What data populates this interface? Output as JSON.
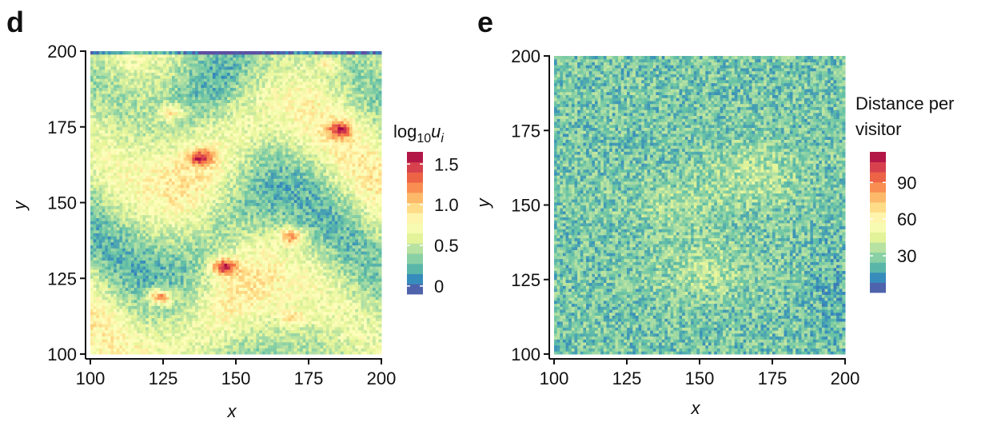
{
  "chart_data": [
    {
      "type": "heatmap",
      "panel_label": "d",
      "xlabel": "x",
      "ylabel": "y",
      "xlim": [
        100,
        200
      ],
      "ylim": [
        100,
        200
      ],
      "x_ticks": [
        100,
        125,
        150,
        175,
        200
      ],
      "y_ticks": [
        100,
        125,
        150,
        175,
        200
      ],
      "colorbar": {
        "title_base": "log",
        "title_sub": "10",
        "title_var": "u",
        "title_var_sub": "i",
        "range": [
          -0.1,
          1.65
        ],
        "ticks": [
          0,
          0.5,
          1.0,
          1.5
        ],
        "tick_labels": [
          "0",
          "0.5",
          "1.0",
          "1.5"
        ]
      },
      "hotspots": [
        {
          "x": 124,
          "y": 119,
          "value": 1.5
        },
        {
          "x": 146,
          "y": 129,
          "value": 1.55
        },
        {
          "x": 138,
          "y": 165,
          "value": 1.35
        },
        {
          "x": 169,
          "y": 139,
          "value": 1.3
        },
        {
          "x": 186,
          "y": 174,
          "value": 1.3
        },
        {
          "x": 128,
          "y": 180,
          "value": 1.1
        },
        {
          "x": 170,
          "y": 112,
          "value": 1.0
        },
        {
          "x": 182,
          "y": 196,
          "value": 1.0
        }
      ]
    },
    {
      "type": "heatmap",
      "panel_label": "e",
      "xlabel": "x",
      "ylabel": "y",
      "xlim": [
        100,
        200
      ],
      "ylim": [
        100,
        200
      ],
      "x_ticks": [
        100,
        125,
        150,
        175,
        200
      ],
      "y_ticks": [
        100,
        125,
        150,
        175,
        200
      ],
      "colorbar": {
        "title_lines": [
          "Distance per",
          "visitor"
        ],
        "range": [
          0,
          115
        ],
        "ticks": [
          30,
          60,
          90
        ],
        "tick_labels": [
          "30",
          "60",
          "90"
        ]
      }
    }
  ],
  "palette": [
    "#5e4fa2",
    "#3288bd",
    "#66c2a5",
    "#abdda4",
    "#e6f598",
    "#ffffbf",
    "#fee08b",
    "#fdae61",
    "#f46d43",
    "#d53e4f",
    "#9e0142"
  ]
}
